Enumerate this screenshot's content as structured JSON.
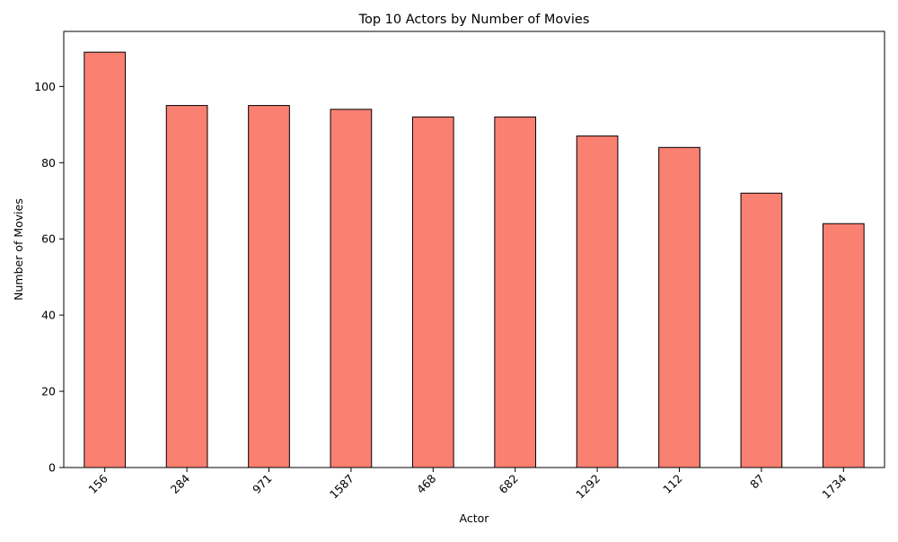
{
  "chart_data": {
    "type": "bar",
    "title": "Top 10 Actors by Number of Movies",
    "xlabel": "Actor",
    "ylabel": "Number of Movies",
    "categories": [
      "156",
      "284",
      "971",
      "1587",
      "468",
      "682",
      "1292",
      "112",
      "87",
      "1734"
    ],
    "values": [
      109,
      95,
      95,
      94,
      92,
      92,
      87,
      84,
      72,
      64
    ],
    "ylim": [
      0,
      114.45
    ],
    "yticks": [
      0,
      20,
      40,
      60,
      80,
      100
    ],
    "grid": false,
    "legend": "none",
    "bar_color": "#fa8072",
    "bar_edge_color": "#000000"
  }
}
